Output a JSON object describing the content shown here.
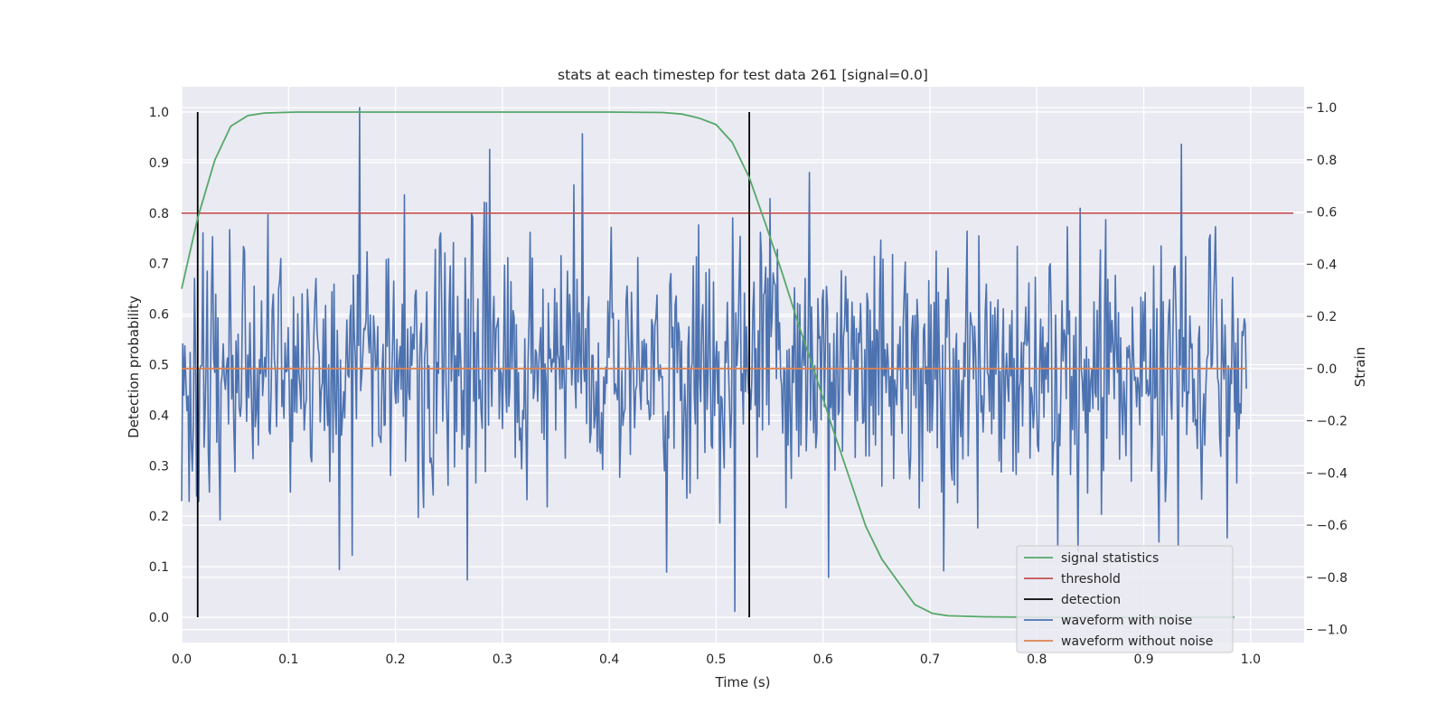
{
  "chart_data": {
    "type": "line",
    "title": "stats at each timestep for test data 261 [signal=0.0]",
    "xlabel": "Time (s)",
    "ylabel_left": "Detection probability",
    "ylabel_right": "Strain",
    "xlim": [
      0.0,
      1.05
    ],
    "ylim_left": [
      -0.05,
      1.05
    ],
    "ylim_right": [
      -1.05,
      1.08
    ],
    "x_ticks": [
      "0.0",
      "0.1",
      "0.2",
      "0.3",
      "0.4",
      "0.5",
      "0.6",
      "0.7",
      "0.8",
      "0.9",
      "1.0"
    ],
    "left_ticks": [
      "0.0",
      "0.1",
      "0.2",
      "0.3",
      "0.4",
      "0.5",
      "0.6",
      "0.7",
      "0.8",
      "0.9",
      "1.0"
    ],
    "right_ticks": [
      "−1.0",
      "−0.8",
      "−0.6",
      "−0.4",
      "−0.2",
      "0.0",
      "0.2",
      "0.4",
      "0.6",
      "0.8",
      "1.0"
    ],
    "grid": true,
    "legend_position": "lower-right",
    "series": [
      {
        "name": "signal statistics",
        "axis": "left",
        "color": "#55a868",
        "x": [
          0.0,
          0.015,
          0.031,
          0.046,
          0.062,
          0.077,
          0.093,
          0.108,
          0.124,
          0.2,
          0.3,
          0.4,
          0.45,
          0.468,
          0.484,
          0.5,
          0.515,
          0.531,
          0.546,
          0.562,
          0.577,
          0.593,
          0.608,
          0.624,
          0.64,
          0.655,
          0.671,
          0.686,
          0.702,
          0.717,
          0.733,
          0.75,
          0.8,
          0.9,
          0.985
        ],
        "y": [
          0.65,
          0.79,
          0.905,
          0.972,
          0.993,
          0.998,
          0.999,
          1.0,
          1.0,
          1.0,
          1.0,
          1.0,
          0.999,
          0.996,
          0.988,
          0.975,
          0.94,
          0.87,
          0.78,
          0.68,
          0.58,
          0.48,
          0.38,
          0.28,
          0.18,
          0.115,
          0.068,
          0.025,
          0.008,
          0.003,
          0.002,
          0.001,
          0.0,
          0.0,
          0.0
        ]
      },
      {
        "name": "threshold",
        "axis": "left",
        "color": "#c44e52",
        "x": [
          0.0,
          1.04
        ],
        "y": [
          0.8,
          0.8
        ]
      },
      {
        "name": "detection",
        "axis": "left",
        "color": "#000000",
        "x_positions": [
          0.015,
          0.531
        ],
        "y_range": [
          0.0,
          1.0
        ]
      },
      {
        "name": "waveform with noise",
        "axis": "right",
        "color": "#4c72b0",
        "x_range": [
          0.0,
          0.996
        ],
        "n_points": 1000,
        "amplitude_std": 0.25,
        "peaks": [
          {
            "x": 0.166,
            "y": 1.0
          },
          {
            "x": 0.375,
            "y": 0.9
          },
          {
            "x": 0.288,
            "y": 0.84
          },
          {
            "x": 0.935,
            "y": 0.86
          },
          {
            "x": 0.517,
            "y": -0.93
          },
          {
            "x": 0.148,
            "y": -0.77
          },
          {
            "x": 0.267,
            "y": -0.81
          },
          {
            "x": 0.605,
            "y": -0.8
          },
          {
            "x": 0.838,
            "y": -0.7
          }
        ]
      },
      {
        "name": "waveform without noise",
        "axis": "right",
        "color": "#dd8452",
        "x": [
          0.0,
          0.996
        ],
        "y": [
          0.0,
          0.0
        ]
      }
    ]
  }
}
